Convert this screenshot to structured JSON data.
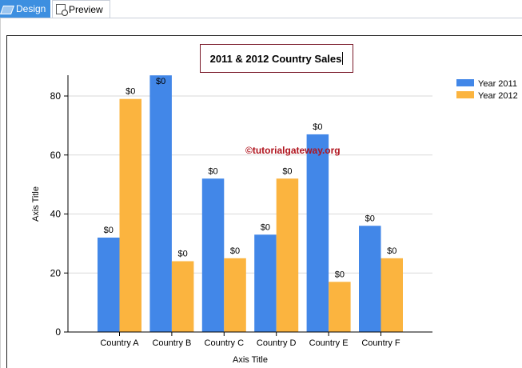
{
  "tabs": [
    {
      "label": "Design",
      "active": true,
      "icon": "design-icon"
    },
    {
      "label": "Preview",
      "active": false,
      "icon": "preview-icon"
    }
  ],
  "watermark": "©tutorialgateway.org",
  "colors": {
    "series1": "#4287e8",
    "series2": "#fbb43f",
    "watermark": "#b0141e",
    "tab_active": "#3d8fe0"
  },
  "chart_data": {
    "type": "bar",
    "title": "2011 & 2012 Country Sales",
    "xlabel": "Axis Title",
    "ylabel": "Axis Title",
    "categories": [
      "Country A",
      "Country B",
      "Country C",
      "Country D",
      "Country E",
      "Country F"
    ],
    "series": [
      {
        "name": "Year 2011",
        "values": [
          32,
          87,
          52,
          33,
          67,
          36
        ]
      },
      {
        "name": "Year 2012",
        "values": [
          79,
          24,
          25,
          52,
          17,
          25
        ]
      }
    ],
    "data_label": "$0",
    "ylim": [
      0,
      87
    ],
    "yticks": [
      0,
      20,
      40,
      60,
      80
    ],
    "grid": true,
    "legend": "top-right"
  }
}
